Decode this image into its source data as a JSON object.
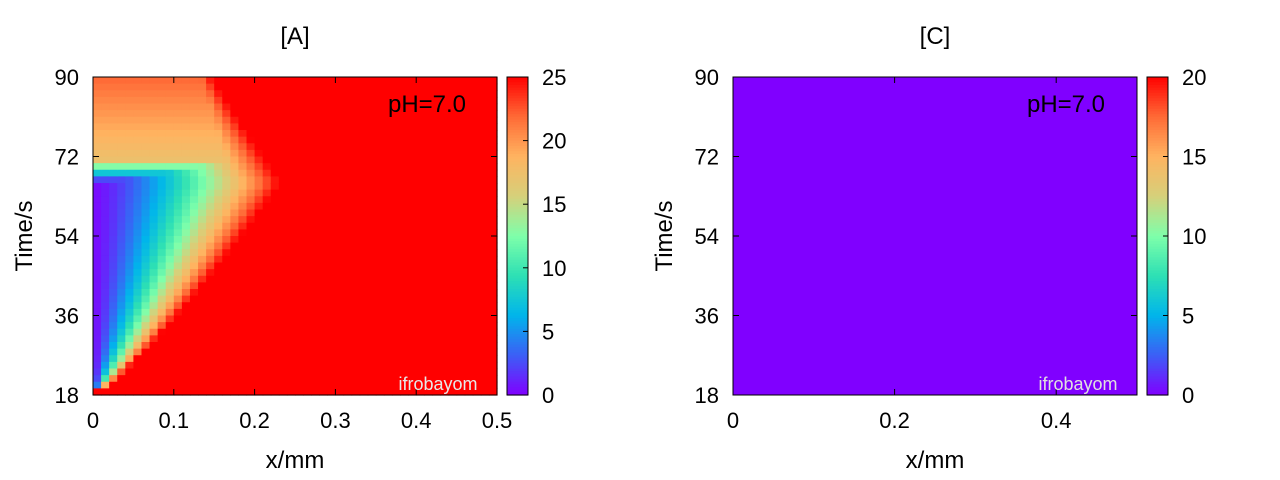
{
  "chart_data": [
    {
      "type": "heatmap",
      "title": "[A]",
      "xlabel": "x/mm",
      "ylabel": "Time/s",
      "xlim": [
        0,
        0.5
      ],
      "ylim": [
        18,
        90
      ],
      "x_ticks": [
        "0",
        "0.1",
        "0.2",
        "0.3",
        "0.4",
        "0.5"
      ],
      "y_ticks": [
        "18",
        "36",
        "54",
        "72",
        "90"
      ],
      "colorbar": {
        "range": [
          0,
          25
        ],
        "ticks": [
          "0",
          "5",
          "10",
          "15",
          "20",
          "25"
        ],
        "colormap": "rainbow"
      },
      "annotation": "pH=7.0",
      "watermark": "ifrobayom",
      "field_description": "near-zero at x=0 between t≈20 and t≈68 s, rising with x to 25 beyond x≈0.3 mm; 25 everywhere at t<20 s; partial recovery to ~20 after t≈68 s"
    },
    {
      "type": "heatmap",
      "title": "[C]",
      "xlabel": "x/mm",
      "ylabel": "Time/s",
      "xlim": [
        0,
        0.5
      ],
      "ylim": [
        18,
        90
      ],
      "x_ticks": [
        "0",
        "0.2",
        "0.4"
      ],
      "y_ticks": [
        "18",
        "36",
        "54",
        "72",
        "90"
      ],
      "colorbar": {
        "range": [
          0,
          20
        ],
        "ticks": [
          "0",
          "5",
          "10",
          "15",
          "20"
        ],
        "colormap": "rainbow"
      },
      "annotation": "pH=7.0",
      "watermark": "ifrobayom",
      "uniform_value": 0
    }
  ],
  "colors": {
    "cmap_stops": [
      "#8000ff",
      "#3c5ff6",
      "#00b5eb",
      "#2de0b4",
      "#7fffaa",
      "#d6d07a",
      "#ffb360",
      "#ff6a36",
      "#ff0000"
    ]
  }
}
